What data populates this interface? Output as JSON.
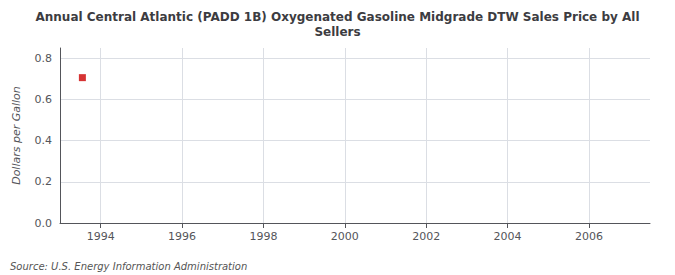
{
  "chart_data": {
    "type": "scatter",
    "title": "Annual Central Atlantic (PADD 1B) Oxygenated Gasoline Midgrade DTW Sales Price by All\nSellers",
    "ylabel": "Dollars per Gallon",
    "annotations": [
      "Source: U.S. Energy Information Administration"
    ],
    "x": [
      1993.55
    ],
    "values": [
      0.706
    ],
    "color": "#cc0000",
    "marker": "square",
    "xlim": [
      1993.0,
      2007.5
    ],
    "xticks": [
      1994,
      1996,
      1998,
      2000,
      2002,
      2004,
      2006
    ],
    "ylim": [
      0.0,
      0.85
    ],
    "yticks": [
      {
        "value": 0.0,
        "label": "0.0"
      },
      0.2,
      0.4,
      0.6,
      0.8
    ],
    "grid": true
  }
}
